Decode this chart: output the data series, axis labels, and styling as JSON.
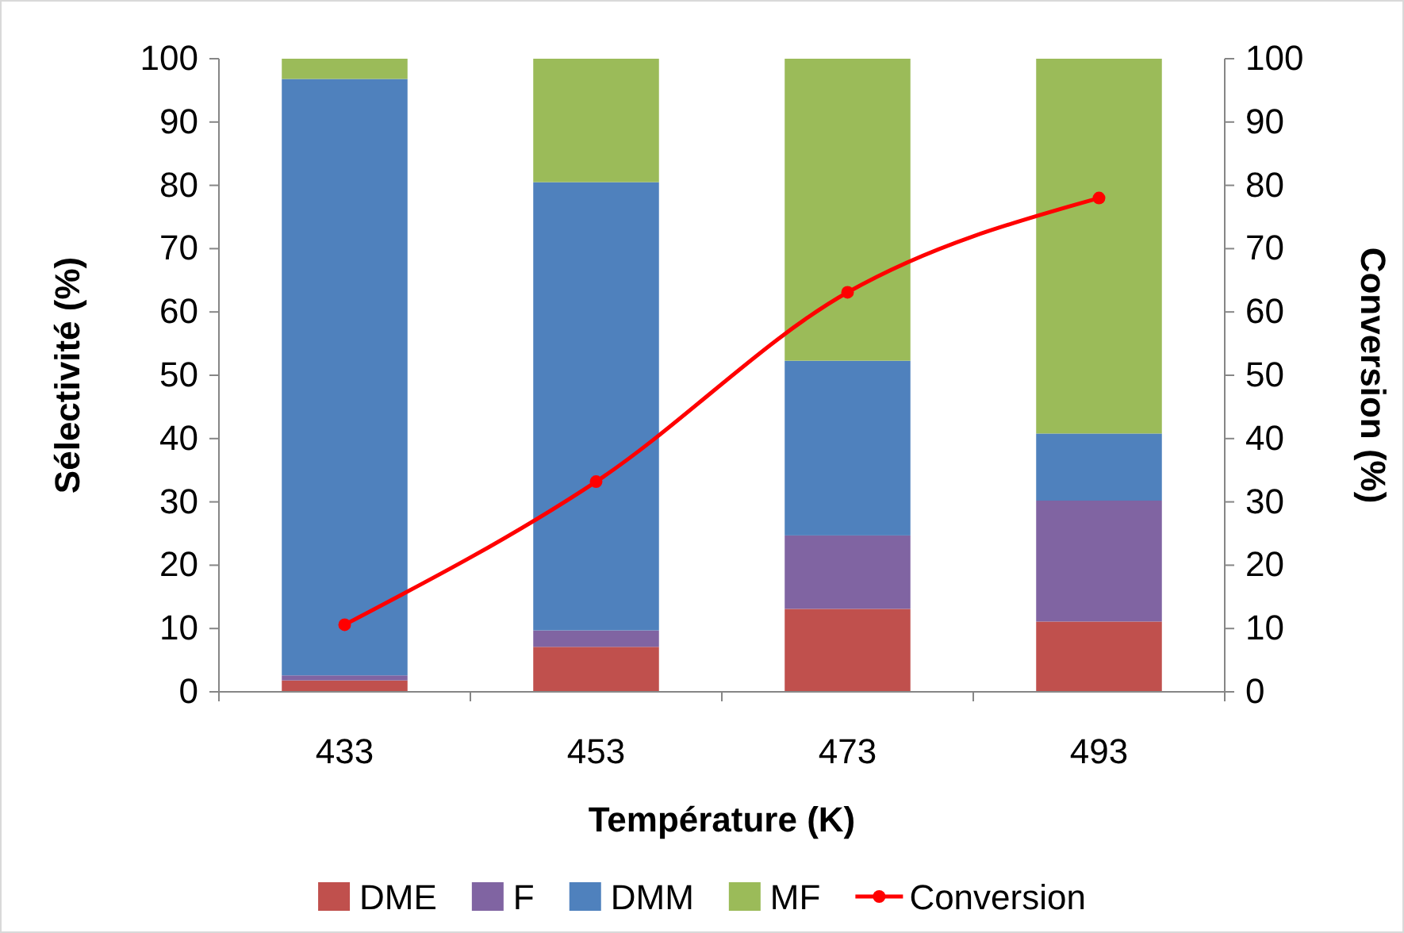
{
  "chart_data": {
    "type": "bar",
    "stacked": true,
    "xlabel": "Température (K)",
    "ylabel": "Sélectivité (%)",
    "y2label": "Conversion (%)",
    "categories": [
      "433",
      "453",
      "473",
      "493"
    ],
    "series": [
      {
        "name": "DME",
        "color": "#c0504d",
        "values": [
          1.8,
          7.1,
          13.1,
          11.1
        ]
      },
      {
        "name": "F",
        "color": "#8064a2",
        "values": [
          0.8,
          2.6,
          11.6,
          19.1
        ]
      },
      {
        "name": "DMM",
        "color": "#4f81bd",
        "values": [
          94.2,
          70.8,
          27.6,
          10.6
        ]
      },
      {
        "name": "MF",
        "color": "#9bbb59",
        "values": [
          3.2,
          19.5,
          47.7,
          59.2
        ]
      },
      {
        "name": "Conversion",
        "type": "line",
        "axis": "y2",
        "color": "#ff0000",
        "marker": "circle",
        "values": [
          10.6,
          33.2,
          63.1,
          78.0
        ]
      }
    ],
    "ylim": [
      0,
      100
    ],
    "yticks": [
      0,
      10,
      20,
      30,
      40,
      50,
      60,
      70,
      80,
      90,
      100
    ],
    "y2lim": [
      0,
      100
    ],
    "y2ticks": [
      0,
      10,
      20,
      30,
      40,
      50,
      60,
      70,
      80,
      90,
      100
    ],
    "grid": false,
    "legend": "bottom"
  }
}
